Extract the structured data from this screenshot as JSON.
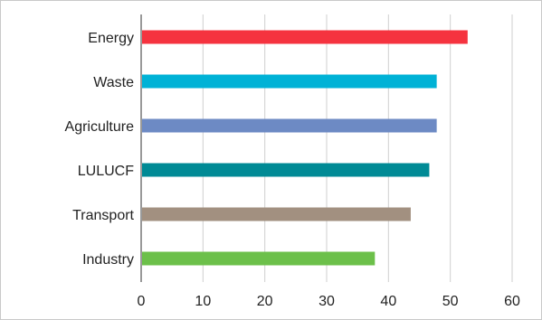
{
  "chart_data": {
    "type": "bar",
    "orientation": "horizontal",
    "categories": [
      "Energy",
      "Waste",
      "Agriculture",
      "LULUCF",
      "Transport",
      "Industry"
    ],
    "values": [
      52.8,
      47.8,
      47.8,
      46.6,
      43.6,
      37.8
    ],
    "colors": [
      "#f5333f",
      "#00b2d6",
      "#6d8ac4",
      "#008a95",
      "#a29080",
      "#6cc04a"
    ],
    "xlim": [
      0,
      60
    ],
    "xticks": [
      "0",
      "10",
      "20",
      "30",
      "40",
      "50",
      "60"
    ],
    "grid": "vertical",
    "legend": "none"
  }
}
